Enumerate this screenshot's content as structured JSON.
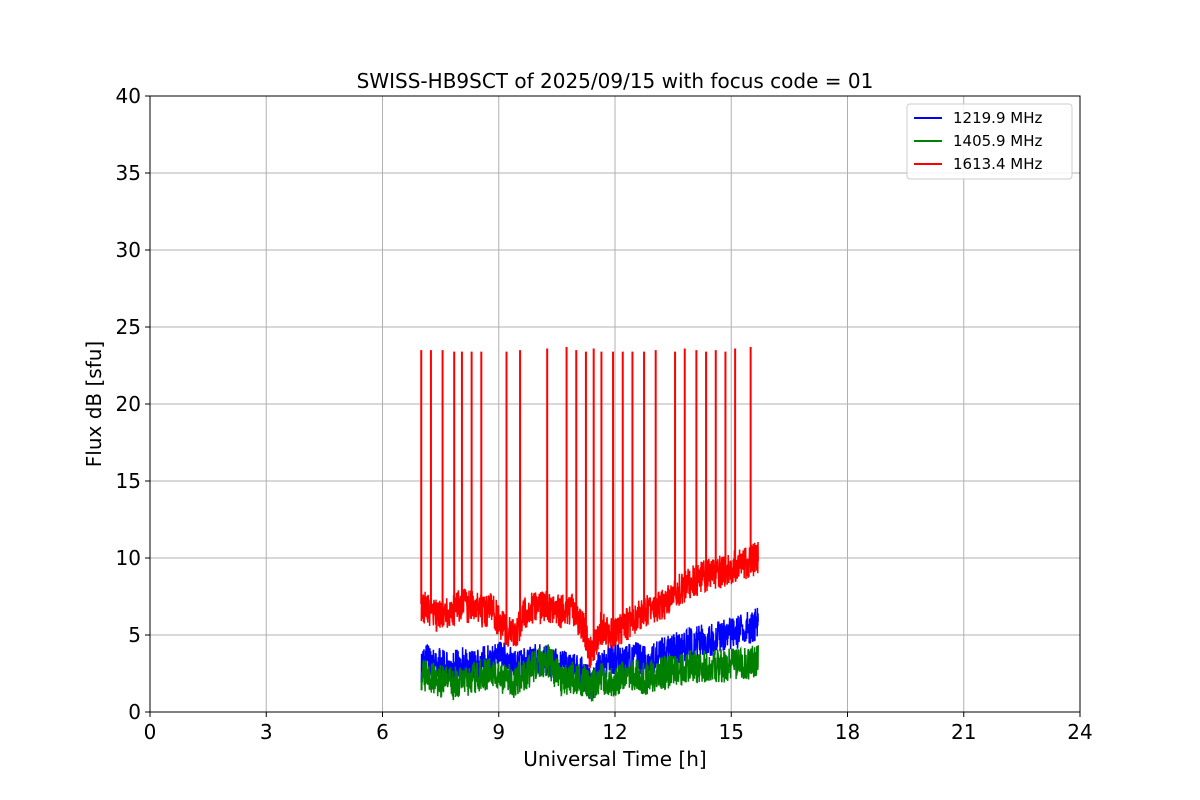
{
  "chart_data": {
    "type": "line",
    "title": "SWISS-HB9SCT of 2025/09/15 with focus code = 01",
    "xlabel": "Universal Time [h]",
    "ylabel": "Flux dB [sfu]",
    "xlim": [
      0,
      24
    ],
    "ylim": [
      0,
      40
    ],
    "xticks": [
      "0",
      "3",
      "6",
      "9",
      "12",
      "15",
      "18",
      "21",
      "24"
    ],
    "yticks": [
      "0",
      "5",
      "10",
      "15",
      "20",
      "25",
      "30",
      "35",
      "40"
    ],
    "grid": true,
    "legend_position": "top-right",
    "series": [
      {
        "name": "1219.9 MHz",
        "color": "#0000ff",
        "x": [
          7.0,
          7.2,
          7.5,
          7.8,
          8.0,
          8.3,
          8.6,
          8.8,
          9.1,
          9.4,
          9.7,
          10.0,
          10.3,
          10.6,
          10.9,
          11.2,
          11.4,
          11.6,
          11.9,
          12.2,
          12.5,
          12.8,
          13.1,
          13.4,
          13.7,
          14.0,
          14.3,
          14.6,
          14.9,
          15.2,
          15.5,
          15.7
        ],
        "y": [
          3.0,
          3.5,
          3.0,
          2.8,
          3.2,
          3.0,
          3.2,
          3.3,
          3.5,
          3.0,
          3.2,
          3.4,
          3.2,
          3.0,
          2.8,
          2.5,
          1.5,
          3.0,
          3.5,
          3.2,
          3.5,
          3.3,
          3.6,
          4.0,
          4.2,
          4.5,
          4.6,
          4.8,
          5.0,
          5.2,
          5.5,
          5.8
        ]
      },
      {
        "name": "1405.9 MHz",
        "color": "#008000",
        "x": [
          7.0,
          7.2,
          7.5,
          7.8,
          8.0,
          8.3,
          8.6,
          8.8,
          9.1,
          9.4,
          9.7,
          10.0,
          10.3,
          10.6,
          10.9,
          11.2,
          11.4,
          11.6,
          11.9,
          12.2,
          12.5,
          12.8,
          13.1,
          13.4,
          13.7,
          14.0,
          14.3,
          14.6,
          14.9,
          15.2,
          15.5,
          15.7
        ],
        "y": [
          2.5,
          2.2,
          2.0,
          1.8,
          2.0,
          2.2,
          2.4,
          2.6,
          2.2,
          2.0,
          2.4,
          3.3,
          3.3,
          2.0,
          2.2,
          2.0,
          1.5,
          2.3,
          2.0,
          2.2,
          2.4,
          2.2,
          2.5,
          2.6,
          2.8,
          3.0,
          2.9,
          3.0,
          3.0,
          3.2,
          3.2,
          3.3
        ]
      },
      {
        "name": "1613.4 MHz",
        "color": "#ff0000",
        "x": [
          7.0,
          7.2,
          7.5,
          7.8,
          8.0,
          8.3,
          8.6,
          8.8,
          9.1,
          9.4,
          9.7,
          10.0,
          10.3,
          10.6,
          10.9,
          11.2,
          11.4,
          11.6,
          11.9,
          12.2,
          12.5,
          12.8,
          13.1,
          13.4,
          13.7,
          14.0,
          14.3,
          14.6,
          14.9,
          15.2,
          15.5,
          15.7
        ],
        "y": [
          7.0,
          6.5,
          6.2,
          6.5,
          7.0,
          6.8,
          6.5,
          6.8,
          5.5,
          5.0,
          6.5,
          6.8,
          6.8,
          6.5,
          6.6,
          5.5,
          3.5,
          5.5,
          5.0,
          5.5,
          6.0,
          6.5,
          6.8,
          7.2,
          8.0,
          8.5,
          8.8,
          9.0,
          9.3,
          9.5,
          9.8,
          10.0
        ]
      }
    ],
    "spikes": {
      "series": "1613.4 MHz",
      "x": [
        7.0,
        7.25,
        7.55,
        7.85,
        8.05,
        8.3,
        8.55,
        9.2,
        9.55,
        10.25,
        10.75,
        11.0,
        11.25,
        11.45,
        11.65,
        11.95,
        12.2,
        12.45,
        12.75,
        13.05,
        13.55,
        13.8,
        14.1,
        14.35,
        14.6,
        14.85,
        15.1,
        15.5
      ],
      "y": [
        23.5,
        23.5,
        23.5,
        23.4,
        23.4,
        23.4,
        23.4,
        23.4,
        23.5,
        23.6,
        23.7,
        23.5,
        23.4,
        23.6,
        23.4,
        23.4,
        23.4,
        23.4,
        23.4,
        23.5,
        23.4,
        23.6,
        23.5,
        23.4,
        23.5,
        23.4,
        23.6,
        23.7
      ]
    }
  }
}
